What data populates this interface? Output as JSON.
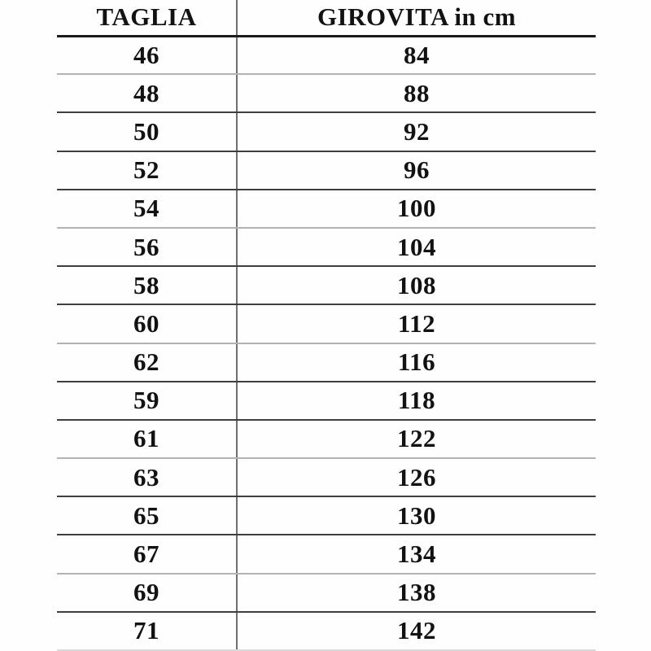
{
  "page": {
    "background": "#fefefe"
  },
  "colors": {
    "text": "#121212",
    "header_rule": "#1c1c1c",
    "row_rule": "#3f3f3f",
    "row_rule_light": "#b3b3b3",
    "bottom_rule_faint": "#d9d9d9",
    "column_divider": "#6f6f6f"
  },
  "chart_data": {
    "type": "table",
    "title": "",
    "columns": [
      "TAGLIA",
      "GIROVITA in cm"
    ],
    "rows": [
      [
        46,
        84
      ],
      [
        48,
        88
      ],
      [
        50,
        92
      ],
      [
        52,
        96
      ],
      [
        54,
        100
      ],
      [
        56,
        104
      ],
      [
        58,
        108
      ],
      [
        60,
        112
      ],
      [
        62,
        116
      ],
      [
        59,
        118
      ],
      [
        61,
        122
      ],
      [
        63,
        126
      ],
      [
        65,
        130
      ],
      [
        67,
        134
      ],
      [
        69,
        138
      ],
      [
        71,
        142
      ]
    ]
  }
}
